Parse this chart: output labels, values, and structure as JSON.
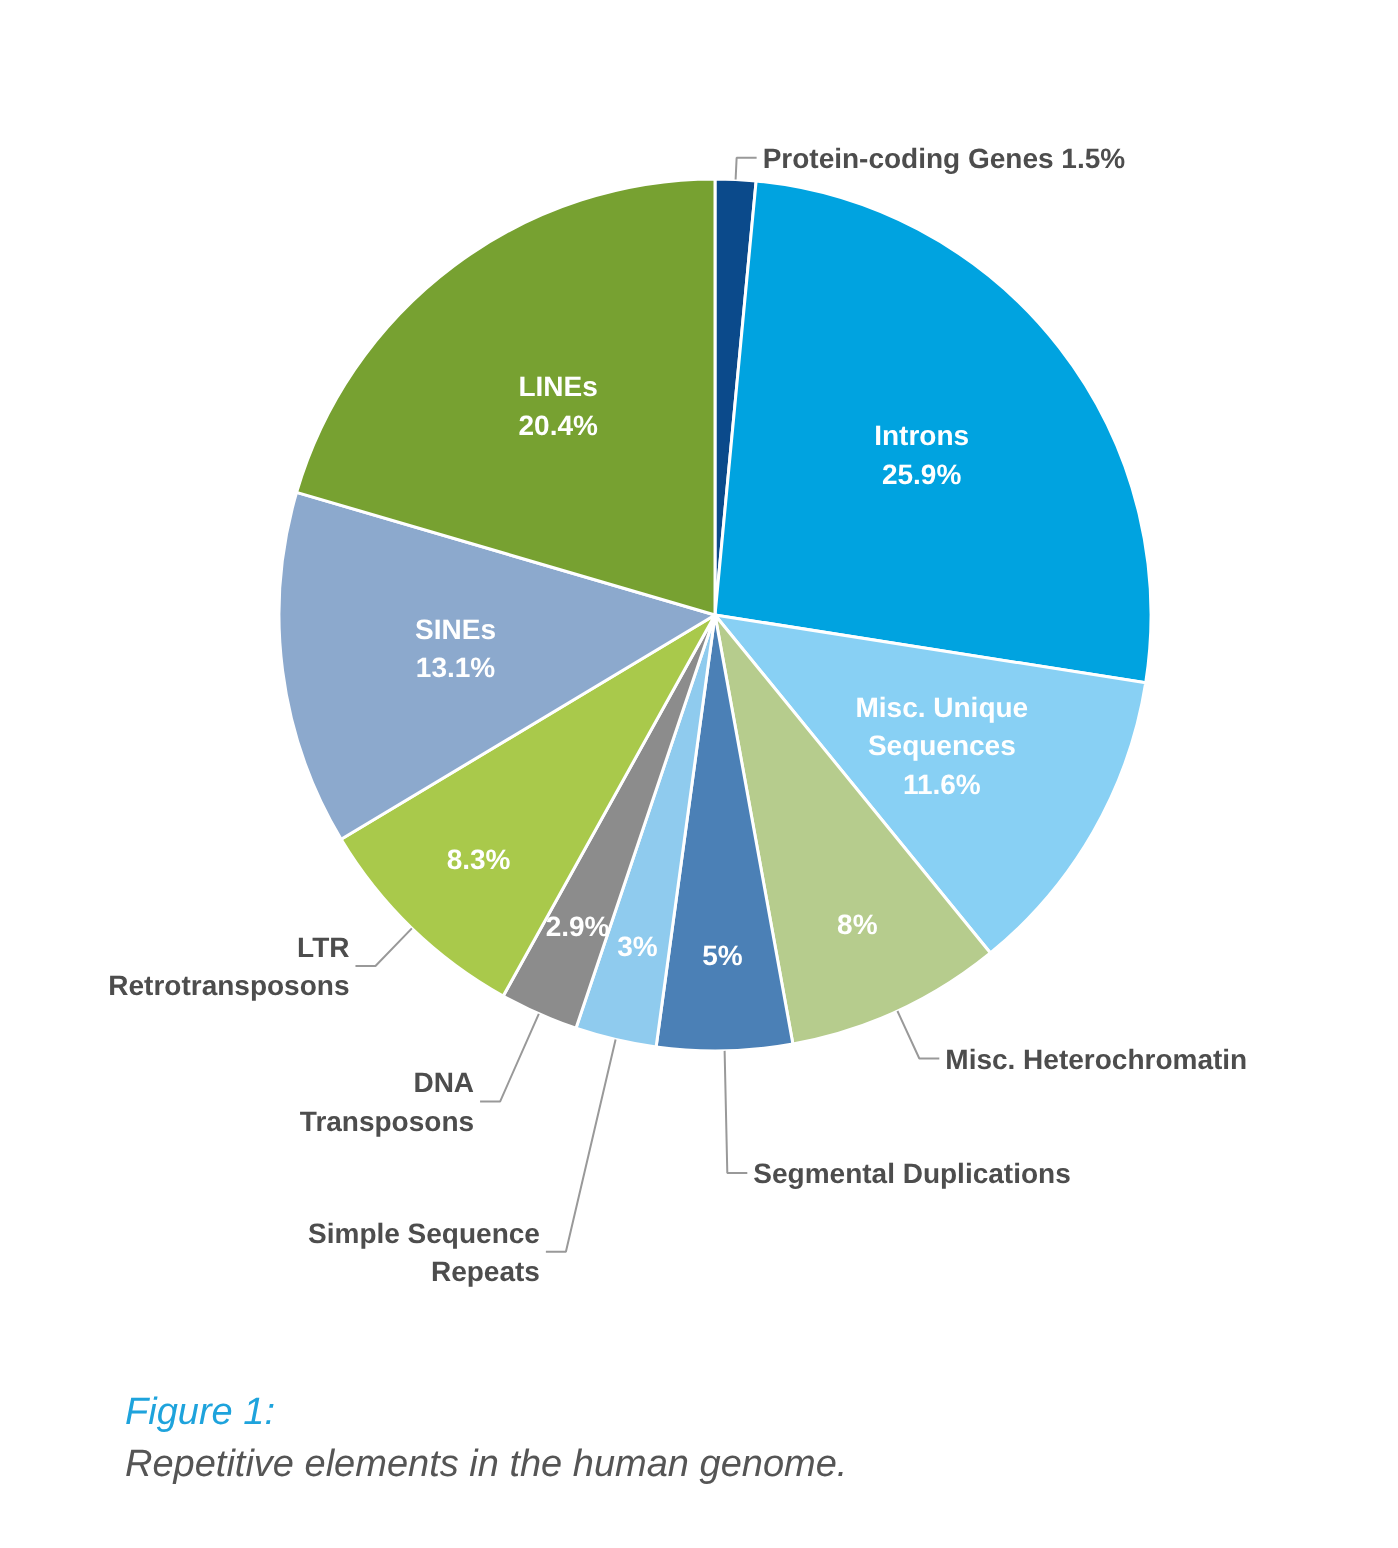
{
  "chart_data": {
    "type": "pie",
    "title": "Figure 1:",
    "subtitle": "Repetitive elements in the human genome.",
    "categories": [
      "Protein-coding Genes",
      "Introns",
      "Misc. Unique\nSequences",
      "Misc. Heterochromatin",
      "Segmental Duplications",
      "Simple Sequence\nRepeats",
      "DNA\nTransposons",
      "LTR\nRetrotransposons",
      "SINEs",
      "LINEs"
    ],
    "values": [
      1.5,
      25.9,
      11.6,
      8,
      5,
      3,
      2.9,
      8.3,
      13.1,
      20.4
    ],
    "value_labels": [
      "1.5%",
      "25.9%",
      "11.6%",
      "8%",
      "5%",
      "3%",
      "2.9%",
      "8.3%",
      "13.1%",
      "20.4%"
    ],
    "colors": [
      "#0b4a8b",
      "#00a3e0",
      "#88d0f4",
      "#b6cc8d",
      "#4b80b6",
      "#8fcbee",
      "#8c8c8c",
      "#a9c94b",
      "#8ca9cd",
      "#77a131"
    ]
  }
}
